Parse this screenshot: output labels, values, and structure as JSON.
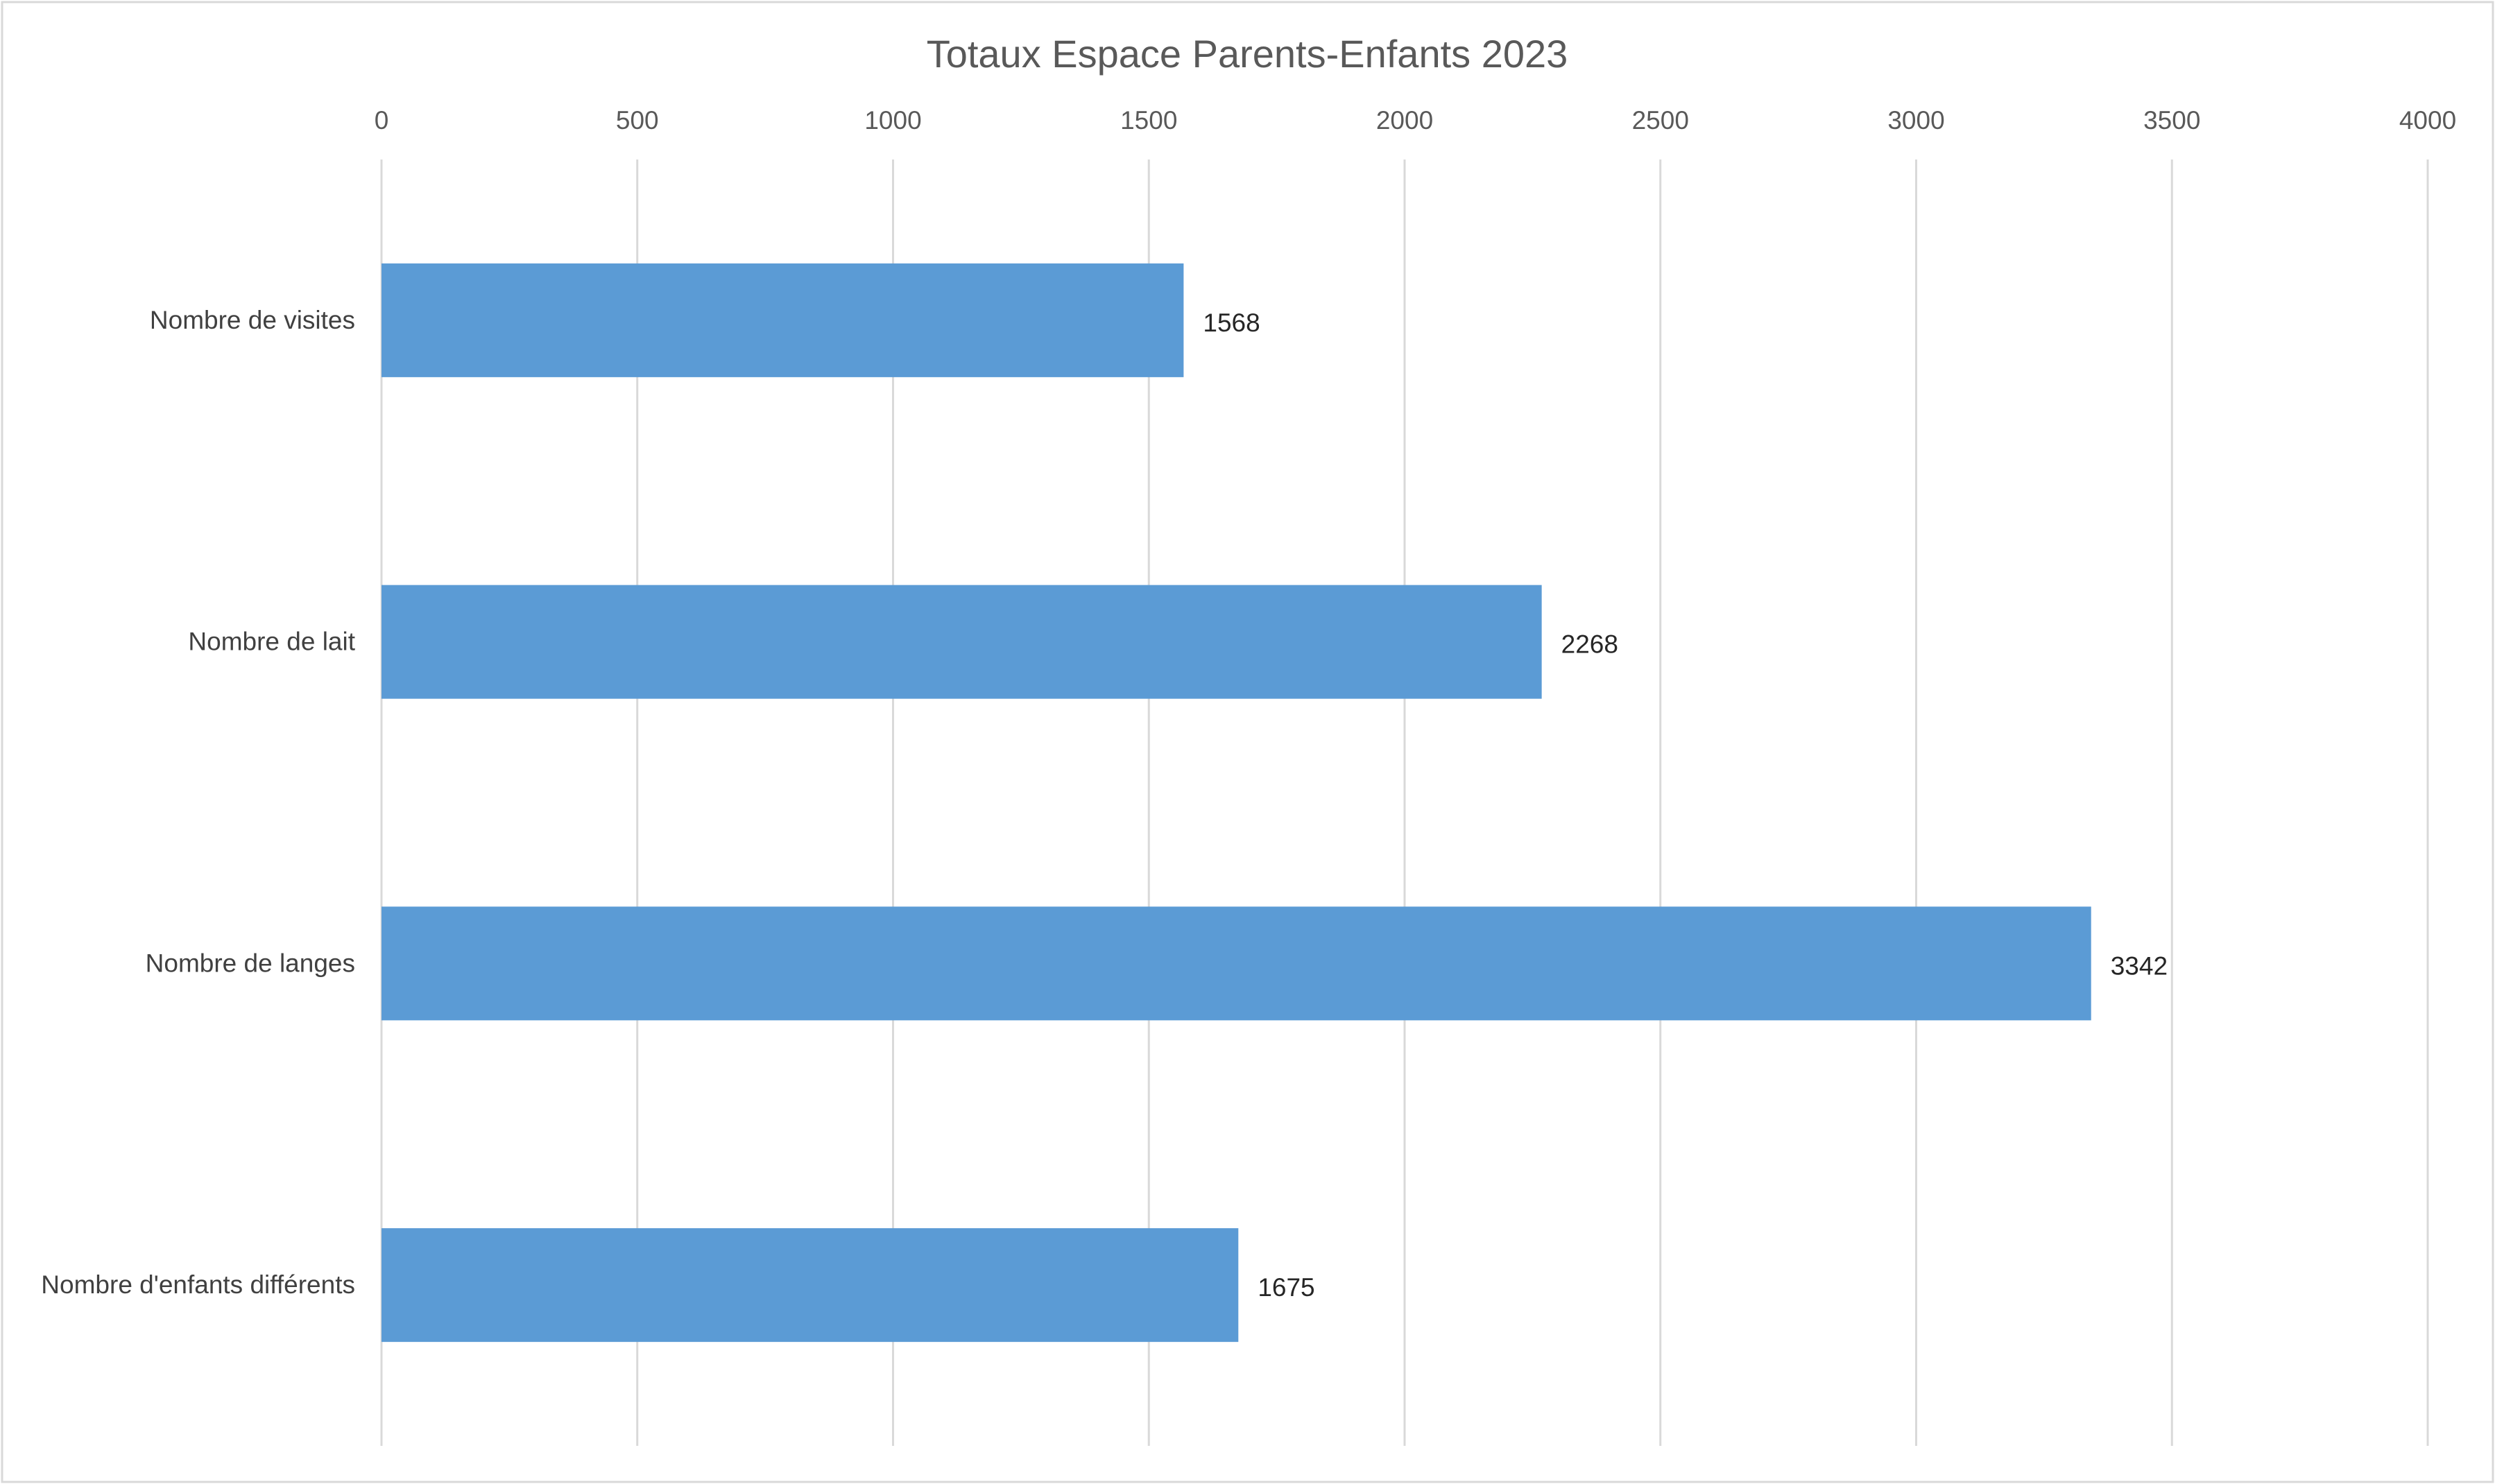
{
  "chart_data": {
    "type": "bar",
    "orientation": "horizontal",
    "title": "Totaux Espace Parents-Enfants 2023",
    "xlabel": "",
    "ylabel": "",
    "categories": [
      "Nombre de visites",
      "Nombre de lait",
      "Nombre de langes",
      "Nombre d'enfants différents"
    ],
    "values": [
      1568,
      2268,
      3342,
      1675
    ],
    "data_labels": [
      "1568",
      "2268",
      "3342",
      "1675"
    ],
    "xlim": [
      0,
      4000
    ],
    "ticks": [
      0,
      500,
      1000,
      1500,
      2000,
      2500,
      3000,
      3500,
      4000
    ],
    "tick_labels": [
      "0",
      "500",
      "1000",
      "1500",
      "2000",
      "2500",
      "3000",
      "3500",
      "4000"
    ],
    "value_axis_position": "top",
    "grid": true,
    "legend": "none",
    "bar_color": "#5B9BD5",
    "grid_color": "#D9D9D9"
  }
}
